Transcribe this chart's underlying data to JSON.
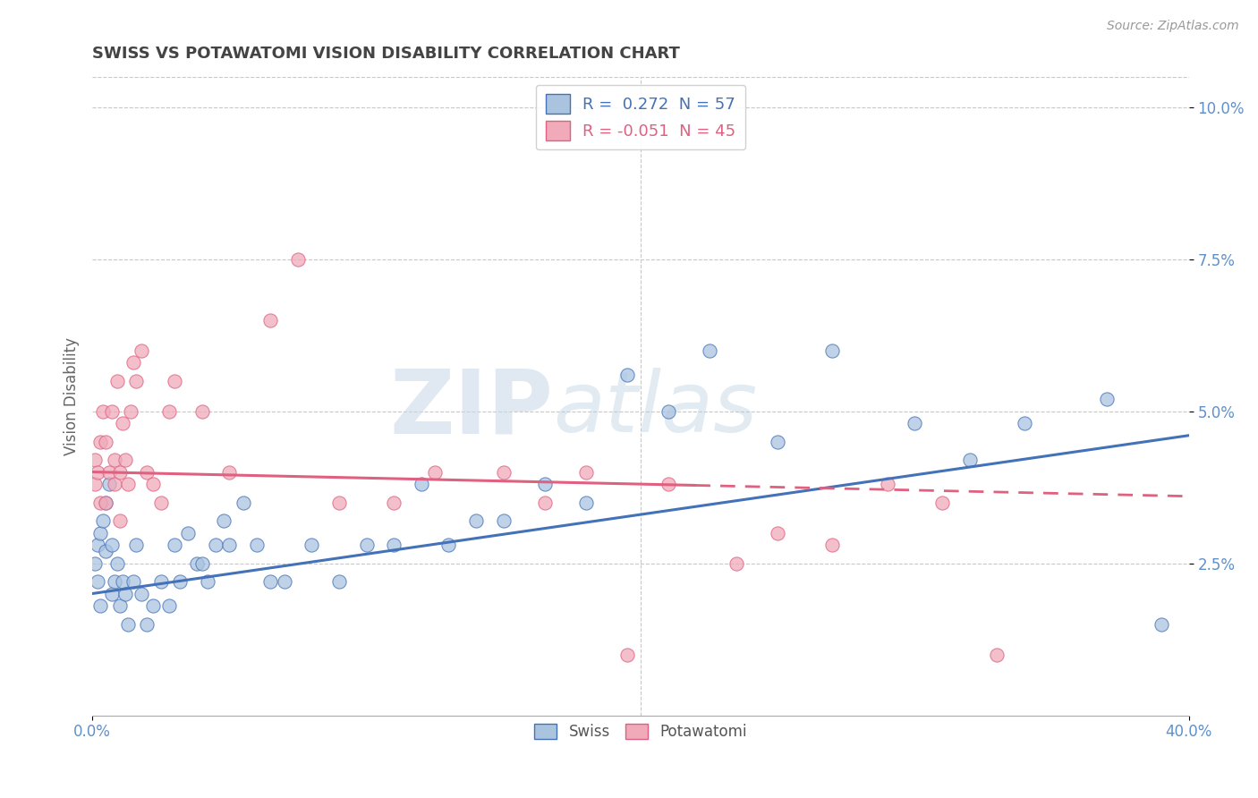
{
  "title": "SWISS VS POTAWATOMI VISION DISABILITY CORRELATION CHART",
  "source": "Source: ZipAtlas.com",
  "ylabel_label": "Vision Disability",
  "x_min": 0.0,
  "x_max": 0.4,
  "y_min": 0.0,
  "y_max": 0.105,
  "x_ticks": [
    0.0,
    0.4
  ],
  "x_tick_labels": [
    "0.0%",
    "40.0%"
  ],
  "y_ticks": [
    0.025,
    0.05,
    0.075,
    0.1
  ],
  "y_tick_labels": [
    "2.5%",
    "5.0%",
    "7.5%",
    "10.0%"
  ],
  "swiss_R": 0.272,
  "swiss_N": 57,
  "potawatomi_R": -0.051,
  "potawatomi_N": 45,
  "swiss_color": "#aac4e0",
  "swiss_line_color": "#4472b8",
  "potawatomi_color": "#f0aaba",
  "potawatomi_line_color": "#e06080",
  "swiss_line_y0": 0.02,
  "swiss_line_y1": 0.046,
  "pot_line_y0": 0.04,
  "pot_line_y1": 0.036,
  "pot_line_solid_x": 0.22,
  "swiss_x": [
    0.001,
    0.002,
    0.002,
    0.003,
    0.003,
    0.004,
    0.005,
    0.005,
    0.006,
    0.007,
    0.007,
    0.008,
    0.009,
    0.01,
    0.011,
    0.012,
    0.013,
    0.015,
    0.016,
    0.018,
    0.02,
    0.022,
    0.025,
    0.028,
    0.03,
    0.032,
    0.035,
    0.038,
    0.04,
    0.042,
    0.045,
    0.048,
    0.05,
    0.055,
    0.06,
    0.065,
    0.07,
    0.08,
    0.09,
    0.1,
    0.11,
    0.12,
    0.13,
    0.14,
    0.15,
    0.165,
    0.18,
    0.195,
    0.21,
    0.225,
    0.25,
    0.27,
    0.3,
    0.32,
    0.34,
    0.37,
    0.39
  ],
  "swiss_y": [
    0.025,
    0.028,
    0.022,
    0.03,
    0.018,
    0.032,
    0.035,
    0.027,
    0.038,
    0.028,
    0.02,
    0.022,
    0.025,
    0.018,
    0.022,
    0.02,
    0.015,
    0.022,
    0.028,
    0.02,
    0.015,
    0.018,
    0.022,
    0.018,
    0.028,
    0.022,
    0.03,
    0.025,
    0.025,
    0.022,
    0.028,
    0.032,
    0.028,
    0.035,
    0.028,
    0.022,
    0.022,
    0.028,
    0.022,
    0.028,
    0.028,
    0.038,
    0.028,
    0.032,
    0.032,
    0.038,
    0.035,
    0.056,
    0.05,
    0.06,
    0.045,
    0.06,
    0.048,
    0.042,
    0.048,
    0.052,
    0.015
  ],
  "potawatomi_x": [
    0.001,
    0.001,
    0.002,
    0.003,
    0.003,
    0.004,
    0.005,
    0.005,
    0.006,
    0.007,
    0.008,
    0.008,
    0.009,
    0.01,
    0.01,
    0.011,
    0.012,
    0.013,
    0.014,
    0.015,
    0.016,
    0.018,
    0.02,
    0.022,
    0.025,
    0.028,
    0.03,
    0.04,
    0.05,
    0.065,
    0.075,
    0.09,
    0.11,
    0.125,
    0.15,
    0.165,
    0.18,
    0.195,
    0.21,
    0.235,
    0.25,
    0.27,
    0.29,
    0.31,
    0.33
  ],
  "potawatomi_y": [
    0.042,
    0.038,
    0.04,
    0.045,
    0.035,
    0.05,
    0.045,
    0.035,
    0.04,
    0.05,
    0.042,
    0.038,
    0.055,
    0.04,
    0.032,
    0.048,
    0.042,
    0.038,
    0.05,
    0.058,
    0.055,
    0.06,
    0.04,
    0.038,
    0.035,
    0.05,
    0.055,
    0.05,
    0.04,
    0.065,
    0.075,
    0.035,
    0.035,
    0.04,
    0.04,
    0.035,
    0.04,
    0.01,
    0.038,
    0.025,
    0.03,
    0.028,
    0.038,
    0.035,
    0.01
  ],
  "watermark_ZIP": "ZIP",
  "watermark_atlas": "atlas",
  "background_color": "#ffffff",
  "grid_color": "#c8c8c8",
  "tick_color": "#6090c8"
}
